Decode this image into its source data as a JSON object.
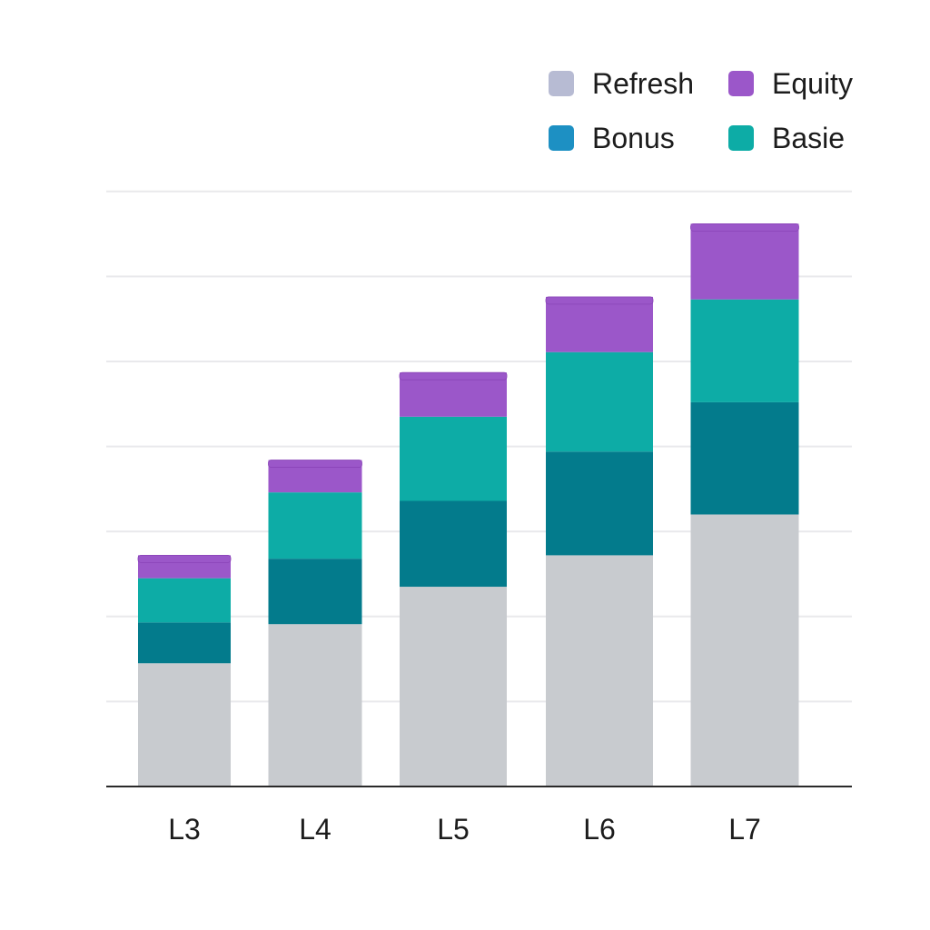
{
  "chart_data": {
    "type": "bar",
    "stacked": true,
    "categories": [
      "L3",
      "L4",
      "L5",
      "L6",
      "L7"
    ],
    "series": [
      {
        "name": "Refresh",
        "color": "#c8cbcf",
        "values": [
          145,
          191,
          235,
          272,
          320
        ]
      },
      {
        "name": "Bonus",
        "color": "#037b8c",
        "values": [
          48,
          77,
          101,
          122,
          132
        ]
      },
      {
        "name": "Basie",
        "color": "#0daca6",
        "values": [
          52,
          78,
          99,
          117,
          121
        ]
      },
      {
        "name": "Equity",
        "color": "#9b57c9",
        "values": [
          27,
          38,
          52,
          65,
          89
        ]
      }
    ],
    "legend": {
      "position": "top-right",
      "order": [
        "Refresh",
        "Equity",
        "Bonus",
        "Basie"
      ],
      "swatch_colors": {
        "Refresh": "#b7bbd3",
        "Equity": "#9b57c9",
        "Bonus": "#1d90c3",
        "Basie": "#0daca6"
      }
    },
    "ylim": [
      0,
      700
    ],
    "grid": true,
    "title": "",
    "xlabel": "",
    "ylabel": ""
  }
}
